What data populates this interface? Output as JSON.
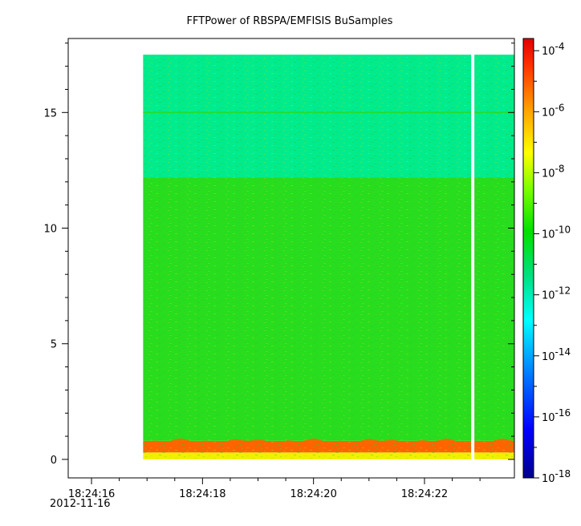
{
  "chart_data": {
    "type": "heatmap",
    "title": "FFTPower of RBSPA/EMFISIS  BuSamples",
    "xlabel": "",
    "ylabel": "",
    "x_ticks": [
      {
        "t": 0,
        "label": "18:24:16"
      },
      {
        "t": 2,
        "label": "18:24:18"
      },
      {
        "t": 4,
        "label": "18:24:20"
      },
      {
        "t": 6,
        "label": "18:24:22"
      }
    ],
    "x_date_label": "2012-11-16",
    "xlim_seconds_after_18_24_16": [
      -0.42,
      7.62
    ],
    "data_xrange_seconds_after_18_24_16": [
      0.93,
      7.62
    ],
    "gap_seconds_after_18_24_16": 6.87,
    "ylim": [
      -0.8,
      18.2
    ],
    "y_ticks": [
      0,
      5,
      10,
      15
    ],
    "data_yrange": [
      0,
      17.5
    ],
    "bands": [
      {
        "y_from": 0.0,
        "y_to": 0.3,
        "log10_power": -8.3
      },
      {
        "y_from": 0.3,
        "y_to": 0.8,
        "log10_power": -6.4
      },
      {
        "y_from": 0.8,
        "y_to": 12.2,
        "log10_power": -10.2
      },
      {
        "y_from": 12.2,
        "y_to": 17.5,
        "log10_power": -11.6
      }
    ],
    "line_features": [
      {
        "y": 15.0,
        "log10_power": -10.4
      }
    ],
    "colorbar": {
      "scale": "log",
      "range": [
        -18,
        -3.6
      ],
      "tick_exponents": [
        -4,
        -6,
        -8,
        -10,
        -12,
        -14,
        -16,
        -18
      ]
    }
  }
}
